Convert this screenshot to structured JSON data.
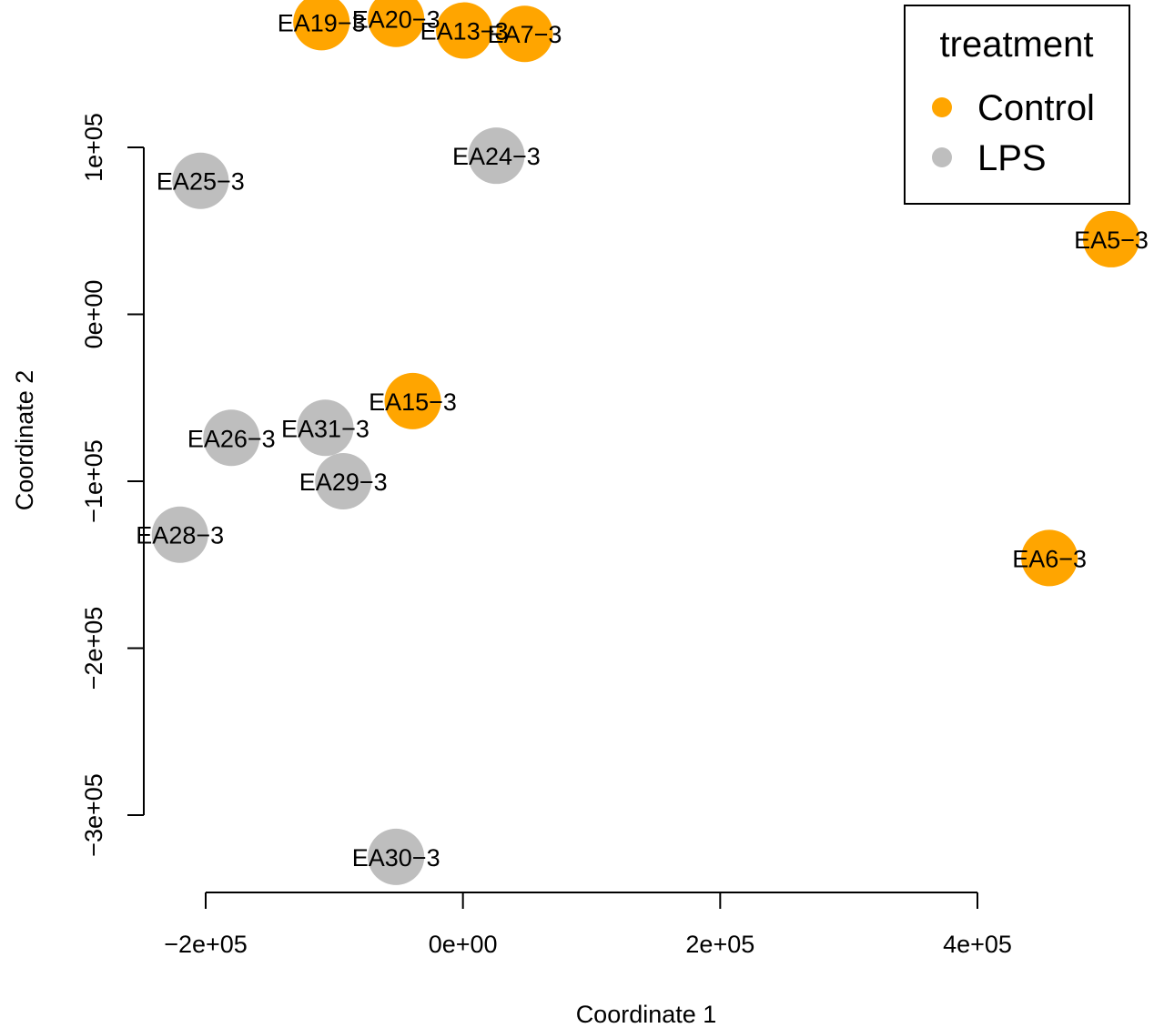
{
  "chart_data": {
    "type": "scatter",
    "xlabel": "Coordinate 1",
    "ylabel": "Coordinate 2",
    "xticks": [
      -200000,
      0,
      200000,
      400000
    ],
    "xtick_labels": [
      "−2e+05",
      "0e+00",
      "2e+05",
      "4e+05"
    ],
    "yticks": [
      -300000,
      -200000,
      -100000,
      0,
      100000
    ],
    "ytick_labels": [
      "−3e+05",
      "−2e+05",
      "−1e+05",
      "0e+00",
      "1e+05"
    ],
    "xlim": [
      -250000,
      510000
    ],
    "ylim": [
      -347000,
      175000
    ],
    "grid": false,
    "legend": {
      "title": "treatment",
      "position": "top-right",
      "entries": [
        {
          "name": "Control",
          "color": "#FFA500"
        },
        {
          "name": "LPS",
          "color": "#BEBEBE"
        }
      ]
    },
    "points": [
      {
        "label": "EA19−3",
        "x": -110000,
        "y": 175000,
        "group": "Control"
      },
      {
        "label": "EA20−3",
        "x": -52000,
        "y": 177000,
        "group": "Control"
      },
      {
        "label": "EA13−3",
        "x": 1000,
        "y": 170000,
        "group": "Control"
      },
      {
        "label": "EA7−3",
        "x": 48000,
        "y": 168000,
        "group": "Control"
      },
      {
        "label": "EA24−3",
        "x": 26000,
        "y": 95000,
        "group": "LPS"
      },
      {
        "label": "EA25−3",
        "x": -204000,
        "y": 80000,
        "group": "LPS"
      },
      {
        "label": "EA5−3",
        "x": 504000,
        "y": 45000,
        "group": "Control"
      },
      {
        "label": "EA15−3",
        "x": -39000,
        "y": -52000,
        "group": "Control"
      },
      {
        "label": "EA31−3",
        "x": -107000,
        "y": -68000,
        "group": "LPS"
      },
      {
        "label": "EA26−3",
        "x": -180000,
        "y": -74000,
        "group": "LPS"
      },
      {
        "label": "EA29−3",
        "x": -93000,
        "y": -100000,
        "group": "LPS"
      },
      {
        "label": "EA28−3",
        "x": -220000,
        "y": -132000,
        "group": "LPS"
      },
      {
        "label": "EA6−3",
        "x": 456000,
        "y": -146000,
        "group": "Control"
      },
      {
        "label": "EA30−3",
        "x": -52000,
        "y": -325000,
        "group": "LPS"
      }
    ]
  }
}
